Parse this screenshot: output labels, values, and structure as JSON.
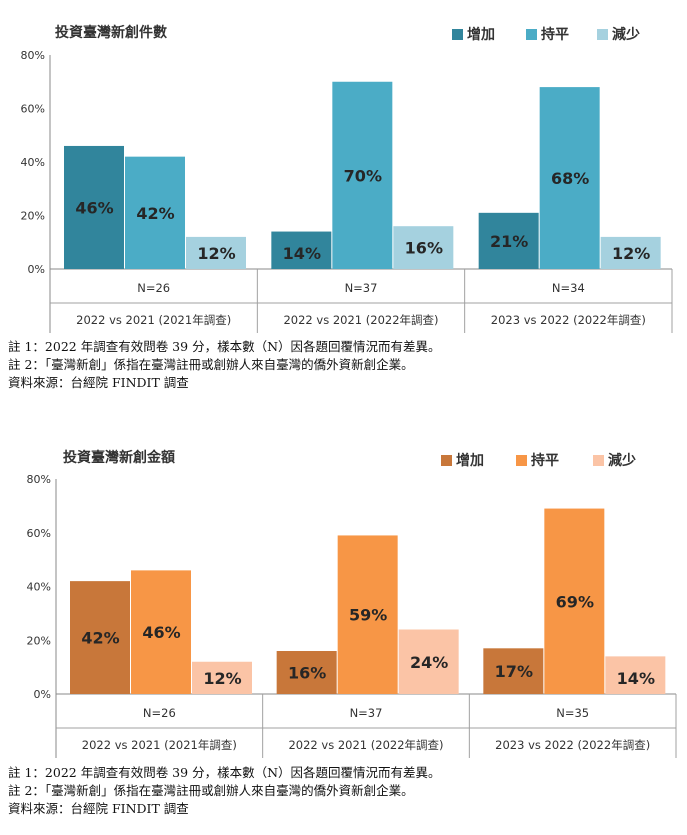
{
  "chart_data": [
    {
      "type": "bar",
      "title": "投資臺灣新創件數",
      "legend": [
        "增加",
        "持平",
        "減少"
      ],
      "colors": [
        "#31859c",
        "#4bacc6",
        "#a5d1df"
      ],
      "ylim": [
        0,
        80
      ],
      "yticks": [
        "0%",
        "20%",
        "40%",
        "60%",
        "80%"
      ],
      "groups": [
        {
          "n": "N=26",
          "label": "2022 vs 2021 (2021年調查)",
          "values": [
            46,
            42,
            12
          ]
        },
        {
          "n": "N=37",
          "label": "2022 vs 2021 (2022年調查)",
          "values": [
            14,
            70,
            16
          ]
        },
        {
          "n": "N=34",
          "label": "2023 vs 2022 (2022年調查)",
          "values": [
            21,
            68,
            12
          ]
        }
      ],
      "value_labels": [
        [
          "46%",
          "42%",
          "12%"
        ],
        [
          "14%",
          "70%",
          "16%"
        ],
        [
          "21%",
          "68%",
          "12%"
        ]
      ]
    },
    {
      "type": "bar",
      "title": "投資臺灣新創金額",
      "legend": [
        "增加",
        "持平",
        "減少"
      ],
      "colors": [
        "#c8773a",
        "#f79646",
        "#fbc4a6"
      ],
      "ylim": [
        0,
        80
      ],
      "yticks": [
        "0%",
        "20%",
        "40%",
        "60%",
        "80%"
      ],
      "groups": [
        {
          "n": "N=26",
          "label": "2022 vs 2021 (2021年調查)",
          "values": [
            42,
            46,
            12
          ]
        },
        {
          "n": "N=37",
          "label": "2022 vs 2021 (2022年調查)",
          "values": [
            16,
            59,
            24
          ]
        },
        {
          "n": "N=35",
          "label": "2023 vs 2022 (2022年調查)",
          "values": [
            17,
            69,
            14
          ]
        }
      ],
      "value_labels": [
        [
          "42%",
          "46%",
          "12%"
        ],
        [
          "16%",
          "59%",
          "24%"
        ],
        [
          "17%",
          "69%",
          "14%"
        ]
      ]
    }
  ],
  "notes": [
    {
      "line1": "註 1：2022 年調查有效問卷 39 分，樣本數（N）因各題回覆情況而有差異。",
      "line2": "註 2：「臺灣新創」係指在臺灣註冊或創辦人來自臺灣的僑外資新創企業。",
      "source": "資料來源：台經院 FINDIT 調查"
    },
    {
      "line1": "註 1：2022 年調查有效問卷 39 分，樣本數（N）因各題回覆情況而有差異。",
      "line2": "註 2：「臺灣新創」係指在臺灣註冊或創辦人來自臺灣的僑外資新創企業。",
      "source": "資料來源：台經院 FINDIT 調查"
    }
  ]
}
